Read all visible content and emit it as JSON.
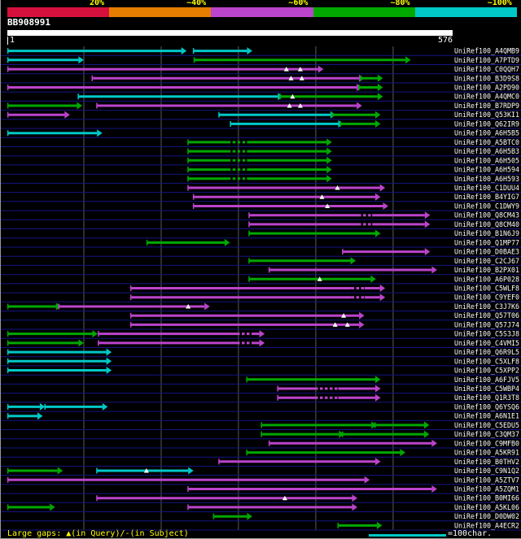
{
  "header": {
    "query_id": "BB908991",
    "ruler_start": "1",
    "ruler_end": "576"
  },
  "footer": {
    "gaps_legend": "Large gaps: ▲(in Query)/-(in Subject)",
    "scale_legend": "=100char."
  },
  "colors": {
    "background": "#000000",
    "row_separator": "#151585",
    "gridline": "#5a5a5a",
    "label_text": "#ffffff",
    "legend_text": "#ffff00",
    "query_bar": "#ffffff",
    "classes": {
      "red": "#d6103c",
      "orange": "#e47d00",
      "purple": "#bb44cc",
      "green": "#00a800",
      "cyan": "#00c8c8"
    }
  },
  "chart_data": {
    "type": "alignment-hit-map",
    "title": "BB908991",
    "query": {
      "id": "BB908991",
      "length": 576,
      "axis_start_label": "1",
      "axis_end_label": "576"
    },
    "axis": {
      "min": 1,
      "max": 576,
      "gridlines": [
        100,
        200,
        300,
        400,
        500
      ]
    },
    "identity_scale": [
      {
        "label": "20%",
        "class": "red"
      },
      {
        "label": "~40%",
        "class": "orange"
      },
      {
        "label": "~60%",
        "class": "purple"
      },
      {
        "label": "~80%",
        "class": "green"
      },
      {
        "label": "~100%",
        "class": "cyan"
      }
    ],
    "legend": {
      "scale_line_chars": 100,
      "scale_line_class": "cyan"
    },
    "rows": [
      {
        "label": "UniRef100_A4QMB9",
        "segments": [
          {
            "s": 2,
            "e": 226,
            "c": "cyan"
          },
          {
            "s": 242,
            "e": 311,
            "c": "cyan"
          }
        ]
      },
      {
        "label": "UniRef100_A7PTD9",
        "segments": [
          {
            "s": 2,
            "e": 93,
            "c": "cyan"
          },
          {
            "s": 243,
            "e": 516,
            "c": "green"
          }
        ]
      },
      {
        "label": "UniRef100_C0QQH7",
        "segments": [
          {
            "s": 2,
            "e": 403,
            "c": "purple",
            "gaps": [
              362,
              380
            ]
          }
        ]
      },
      {
        "label": "UniRef100_B3D9S8",
        "segments": [
          {
            "s": 111,
            "e": 456,
            "c": "purple",
            "gaps": [
              368,
              382
            ]
          },
          {
            "s": 458,
            "e": 480,
            "c": "green"
          }
        ]
      },
      {
        "label": "UniRef100_A2PD90",
        "segments": [
          {
            "s": 2,
            "e": 453,
            "c": "purple"
          },
          {
            "s": 456,
            "e": 480,
            "c": "green"
          }
        ]
      },
      {
        "label": "UniRef100_A4QMC0",
        "segments": [
          {
            "s": 93,
            "e": 351,
            "c": "cyan"
          },
          {
            "s": 354,
            "e": 480,
            "c": "green",
            "gaps": [
              370
            ]
          }
        ]
      },
      {
        "label": "UniRef100_B7RDP9",
        "segments": [
          {
            "s": 2,
            "e": 91,
            "c": "green"
          },
          {
            "s": 117,
            "e": 453,
            "c": "purple",
            "gaps": [
              366,
              380
            ]
          }
        ]
      },
      {
        "label": "UniRef100_Q53KI1",
        "segments": [
          {
            "s": 2,
            "e": 75,
            "c": "purple"
          },
          {
            "s": 275,
            "e": 419,
            "c": "cyan"
          },
          {
            "s": 421,
            "e": 477,
            "c": "green"
          }
        ]
      },
      {
        "label": "UniRef100_Q62IR9",
        "segments": [
          {
            "s": 290,
            "e": 429,
            "c": "cyan"
          },
          {
            "s": 432,
            "e": 477,
            "c": "green"
          }
        ]
      },
      {
        "label": "UniRef100_A6H5B5",
        "segments": [
          {
            "s": 2,
            "e": 117,
            "c": "cyan"
          }
        ]
      },
      {
        "label": "UniRef100_A5BTC0",
        "segments": [
          {
            "s": 235,
            "e": 414,
            "c": "green",
            "dash": [
              286,
              311
            ]
          }
        ]
      },
      {
        "label": "UniRef100_A6H5B3",
        "segments": [
          {
            "s": 235,
            "e": 414,
            "c": "green",
            "dash": [
              286,
              311
            ]
          }
        ]
      },
      {
        "label": "UniRef100_A6H505",
        "segments": [
          {
            "s": 235,
            "e": 414,
            "c": "green",
            "dash": [
              286,
              311
            ]
          }
        ]
      },
      {
        "label": "UniRef100_A6H594",
        "segments": [
          {
            "s": 235,
            "e": 414,
            "c": "green",
            "dash": [
              286,
              311
            ]
          }
        ]
      },
      {
        "label": "UniRef100_A6H593",
        "segments": [
          {
            "s": 235,
            "e": 414,
            "c": "green",
            "dash": [
              286,
              311
            ]
          }
        ]
      },
      {
        "label": "UniRef100_C1DUU4",
        "segments": [
          {
            "s": 235,
            "e": 483,
            "c": "purple",
            "gaps": [
              428
            ]
          }
        ]
      },
      {
        "label": "UniRef100_B4YIG7",
        "segments": [
          {
            "s": 242,
            "e": 477,
            "c": "purple",
            "gaps": [
              408
            ]
          }
        ]
      },
      {
        "label": "UniRef100_C1DWY9",
        "segments": [
          {
            "s": 242,
            "e": 487,
            "c": "purple",
            "gaps": [
              415
            ]
          }
        ]
      },
      {
        "label": "UniRef100_Q8CM43",
        "segments": [
          {
            "s": 314,
            "e": 541,
            "c": "purple",
            "dash": [
              455,
              473
            ]
          }
        ]
      },
      {
        "label": "UniRef100_Q8CM40",
        "segments": [
          {
            "s": 314,
            "e": 541,
            "c": "purple",
            "dash": [
              455,
              473
            ]
          }
        ]
      },
      {
        "label": "UniRef100_B1N6J9",
        "segments": [
          {
            "s": 314,
            "e": 477,
            "c": "green"
          }
        ]
      },
      {
        "label": "UniRef100_Q1MP77",
        "segments": [
          {
            "s": 182,
            "e": 282,
            "c": "green"
          }
        ]
      },
      {
        "label": "UniRef100_D0BAE3",
        "segments": [
          {
            "s": 435,
            "e": 541,
            "c": "purple"
          }
        ]
      },
      {
        "label": "UniRef100_C2CJ67",
        "segments": [
          {
            "s": 314,
            "e": 445,
            "c": "green"
          }
        ]
      },
      {
        "label": "UniRef100_B2PX01",
        "segments": [
          {
            "s": 340,
            "e": 550,
            "c": "purple"
          }
        ]
      },
      {
        "label": "UniRef100_A6P028",
        "segments": [
          {
            "s": 314,
            "e": 471,
            "c": "green",
            "gaps": [
              405
            ]
          }
        ]
      },
      {
        "label": "UniRef100_C5WLF8",
        "segments": [
          {
            "s": 161,
            "e": 483,
            "c": "purple",
            "dash": [
              446,
              463
            ]
          }
        ]
      },
      {
        "label": "UniRef100_C9YEF0",
        "segments": [
          {
            "s": 161,
            "e": 483,
            "c": "purple",
            "dash": [
              446,
              463
            ]
          }
        ]
      },
      {
        "label": "UniRef100_C3J7K6",
        "segments": [
          {
            "s": 2,
            "e": 64,
            "c": "green"
          },
          {
            "s": 68,
            "e": 256,
            "c": "purple",
            "gaps": [
              235
            ]
          }
        ]
      },
      {
        "label": "UniRef100_Q57T06",
        "segments": [
          {
            "s": 161,
            "e": 456,
            "c": "purple",
            "gaps": [
              436
            ]
          }
        ]
      },
      {
        "label": "UniRef100_Q57J74",
        "segments": [
          {
            "s": 161,
            "e": 456,
            "c": "purple",
            "gaps": [
              425,
              441
            ]
          }
        ]
      },
      {
        "label": "UniRef100_C5S3J8",
        "segments": [
          {
            "s": 2,
            "e": 111,
            "c": "green"
          },
          {
            "s": 119,
            "e": 327,
            "c": "purple",
            "dash": [
              298,
              318
            ]
          }
        ]
      },
      {
        "label": "UniRef100_C4VMI5",
        "segments": [
          {
            "s": 2,
            "e": 93,
            "c": "green"
          },
          {
            "s": 119,
            "e": 327,
            "c": "purple",
            "dash": [
              298,
              318
            ]
          }
        ]
      },
      {
        "label": "UniRef100_Q6R9L5",
        "segments": [
          {
            "s": 2,
            "e": 129,
            "c": "cyan"
          }
        ]
      },
      {
        "label": "UniRef100_C5XLF8",
        "segments": [
          {
            "s": 2,
            "e": 129,
            "c": "cyan"
          }
        ]
      },
      {
        "label": "UniRef100_C5XPP2",
        "segments": [
          {
            "s": 2,
            "e": 129,
            "c": "cyan"
          }
        ]
      },
      {
        "label": "UniRef100_A6FJV5",
        "segments": [
          {
            "s": 311,
            "e": 477,
            "c": "green"
          }
        ]
      },
      {
        "label": "UniRef100_C5WBP4",
        "segments": [
          {
            "s": 351,
            "e": 477,
            "c": "purple",
            "dash": [
              399,
              429
            ]
          }
        ]
      },
      {
        "label": "UniRef100_Q1R3T8",
        "segments": [
          {
            "s": 351,
            "e": 477,
            "c": "purple",
            "dash": [
              399,
              429
            ]
          }
        ]
      },
      {
        "label": "UniRef100_Q6YSQ6",
        "segments": [
          {
            "s": 2,
            "e": 43,
            "c": "cyan"
          },
          {
            "s": 50,
            "e": 124,
            "c": "cyan"
          }
        ]
      },
      {
        "label": "UniRef100_A6N1E1",
        "segments": [
          {
            "s": 2,
            "e": 40,
            "c": "cyan"
          }
        ]
      },
      {
        "label": "UniRef100_C5EDU5",
        "segments": [
          {
            "s": 330,
            "e": 472,
            "c": "green"
          },
          {
            "s": 477,
            "e": 540,
            "c": "green"
          }
        ]
      },
      {
        "label": "UniRef100_C3QM37",
        "segments": [
          {
            "s": 330,
            "e": 430,
            "c": "green"
          },
          {
            "s": 435,
            "e": 540,
            "c": "green"
          }
        ]
      },
      {
        "label": "UniRef100_C9MFB0",
        "segments": [
          {
            "s": 340,
            "e": 550,
            "c": "purple"
          }
        ]
      },
      {
        "label": "UniRef100_A5KR91",
        "segments": [
          {
            "s": 311,
            "e": 509,
            "c": "green"
          }
        ]
      },
      {
        "label": "UniRef100_B0THV2",
        "segments": [
          {
            "s": 275,
            "e": 477,
            "c": "purple"
          }
        ]
      },
      {
        "label": "UniRef100_C9N1Q2",
        "segments": [
          {
            "s": 2,
            "e": 66,
            "c": "green"
          },
          {
            "s": 117,
            "e": 235,
            "c": "cyan",
            "gaps": [
              181
            ]
          }
        ]
      },
      {
        "label": "UniRef100_A5ZTV7",
        "segments": [
          {
            "s": 2,
            "e": 463,
            "c": "purple"
          }
        ]
      },
      {
        "label": "UniRef100_A5ZQM1",
        "segments": [
          {
            "s": 235,
            "e": 550,
            "c": "purple"
          }
        ]
      },
      {
        "label": "UniRef100_B0MI66",
        "segments": [
          {
            "s": 117,
            "e": 447,
            "c": "purple",
            "gaps": [
              360
            ]
          }
        ]
      },
      {
        "label": "UniRef100_A5KL06",
        "segments": [
          {
            "s": 2,
            "e": 56,
            "c": "green"
          },
          {
            "s": 235,
            "e": 447,
            "c": "purple"
          }
        ]
      },
      {
        "label": "UniRef100_D0DW02",
        "segments": [
          {
            "s": 268,
            "e": 311,
            "c": "green"
          }
        ]
      },
      {
        "label": "UniRef100_A4ECR2",
        "segments": [
          {
            "s": 429,
            "e": 479,
            "c": "green"
          }
        ]
      }
    ]
  }
}
